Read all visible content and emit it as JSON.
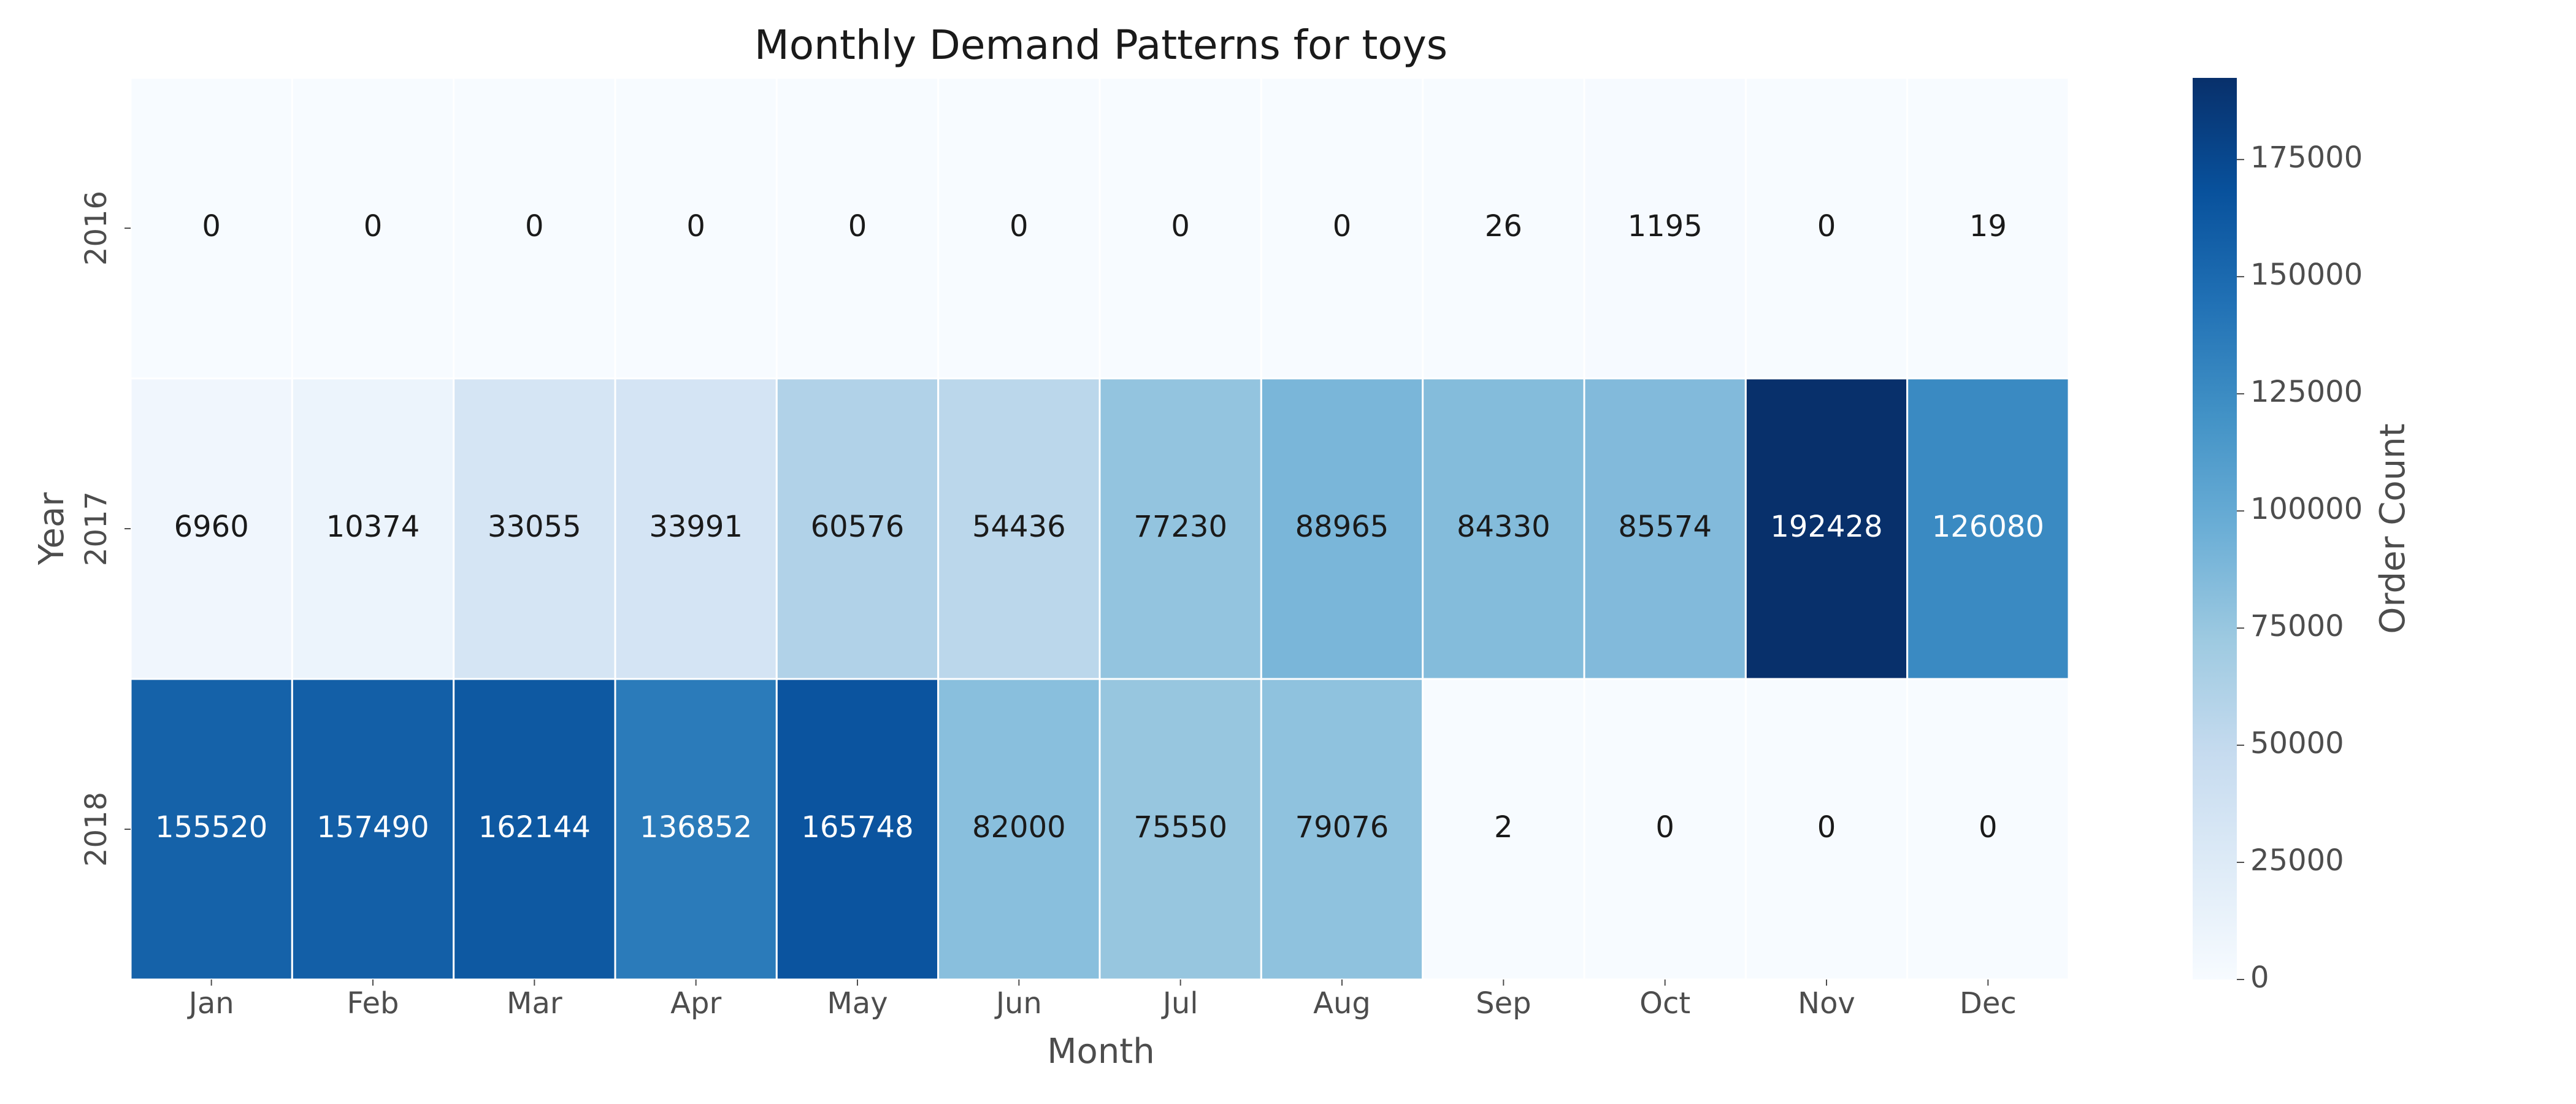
{
  "chart_data": {
    "type": "heatmap",
    "title": "Monthly Demand Patterns for toys",
    "xlabel": "Month",
    "ylabel": "Year",
    "colorbar_label": "Order Count",
    "colormap": "Blues",
    "color_range": [
      0,
      192428
    ],
    "colorbar_ticks": [
      "0",
      "25000",
      "50000",
      "75000",
      "100000",
      "125000",
      "150000",
      "175000"
    ],
    "colorbar_tick_values": [
      0,
      25000,
      50000,
      75000,
      100000,
      125000,
      150000,
      175000
    ],
    "x_categories": [
      "Jan",
      "Feb",
      "Mar",
      "Apr",
      "May",
      "Jun",
      "Jul",
      "Aug",
      "Sep",
      "Oct",
      "Nov",
      "Dec"
    ],
    "y_categories": [
      "2016",
      "2017",
      "2018"
    ],
    "values": [
      [
        0,
        0,
        0,
        0,
        0,
        0,
        0,
        0,
        26,
        1195,
        0,
        19
      ],
      [
        6960,
        10374,
        33055,
        33991,
        60576,
        54436,
        77230,
        88965,
        84330,
        85574,
        192428,
        126080
      ],
      [
        155520,
        157490,
        162144,
        136852,
        165748,
        82000,
        75550,
        79076,
        2,
        0,
        0,
        0
      ]
    ],
    "annotated": true,
    "grid": false,
    "legend": "colorbar-right"
  }
}
